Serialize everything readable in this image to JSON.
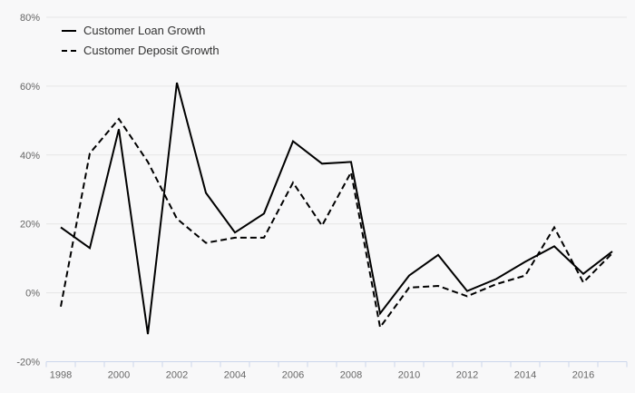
{
  "chart": {
    "legend_items": [
      {
        "label": "Customer Loan Growth",
        "style": "solid"
      },
      {
        "label": "Customer Deposit Growth",
        "style": "dashed"
      }
    ]
  },
  "chart_data": {
    "type": "line",
    "x": [
      1998,
      1999,
      2000,
      2001,
      2002,
      2003,
      2004,
      2005,
      2006,
      2007,
      2008,
      2009,
      2010,
      2011,
      2012,
      2013,
      2014,
      2015,
      2016,
      2017
    ],
    "series": [
      {
        "name": "Customer Loan Growth",
        "dash": "solid",
        "values": [
          19,
          13,
          47.5,
          -12,
          61,
          29,
          17.5,
          23,
          44,
          37.5,
          38,
          -6,
          5,
          11,
          0.5,
          4,
          9,
          13.5,
          5.5,
          12
        ]
      },
      {
        "name": "Customer Deposit Growth",
        "dash": "dashed",
        "values": [
          -4,
          40.5,
          50.5,
          38,
          21.5,
          14.5,
          16,
          16,
          32,
          19.5,
          35,
          -10,
          1.5,
          2,
          -1,
          2.5,
          5,
          19,
          3,
          11.5
        ]
      }
    ],
    "title": "",
    "xlabel": "",
    "ylabel": "",
    "ylim": [
      -20,
      80
    ],
    "yticks": [
      -20,
      0,
      20,
      40,
      60,
      80
    ],
    "ytick_suffix": "%",
    "xtick_labels": [
      "1998",
      "2000",
      "2002",
      "2004",
      "2006",
      "2008",
      "2010",
      "2012",
      "2014",
      "2016"
    ],
    "xtick_label_every": 2,
    "grid": true,
    "legend_position": "top-left",
    "colors": {
      "line": "#000000",
      "grid": "#e6e6e6",
      "axis": "#ccd6eb",
      "tick_label": "#666666",
      "legend_text": "#333333",
      "background": "#f8f8f9"
    }
  }
}
